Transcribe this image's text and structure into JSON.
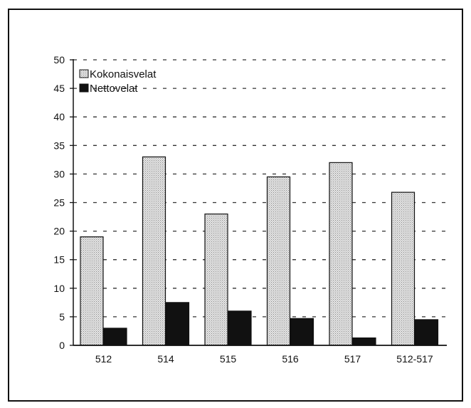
{
  "chart_data": {
    "type": "bar",
    "categories": [
      "512",
      "514",
      "515",
      "516",
      "517",
      "512-517"
    ],
    "series": [
      {
        "name": "Kokonaisvelat",
        "values": [
          19,
          33,
          23,
          29.5,
          32,
          26.8
        ],
        "color": "#cfcfcf",
        "pattern": "dotted-gray"
      },
      {
        "name": "Nettovelat",
        "values": [
          3,
          7.5,
          6,
          4.7,
          1.3,
          4.5
        ],
        "color": "#111111"
      }
    ],
    "ylim": [
      0,
      50
    ],
    "yticks": [
      0,
      5,
      10,
      15,
      20,
      25,
      30,
      35,
      40,
      45,
      50
    ],
    "grid": "horizontal-dashed",
    "legend_placement": "top-left"
  }
}
